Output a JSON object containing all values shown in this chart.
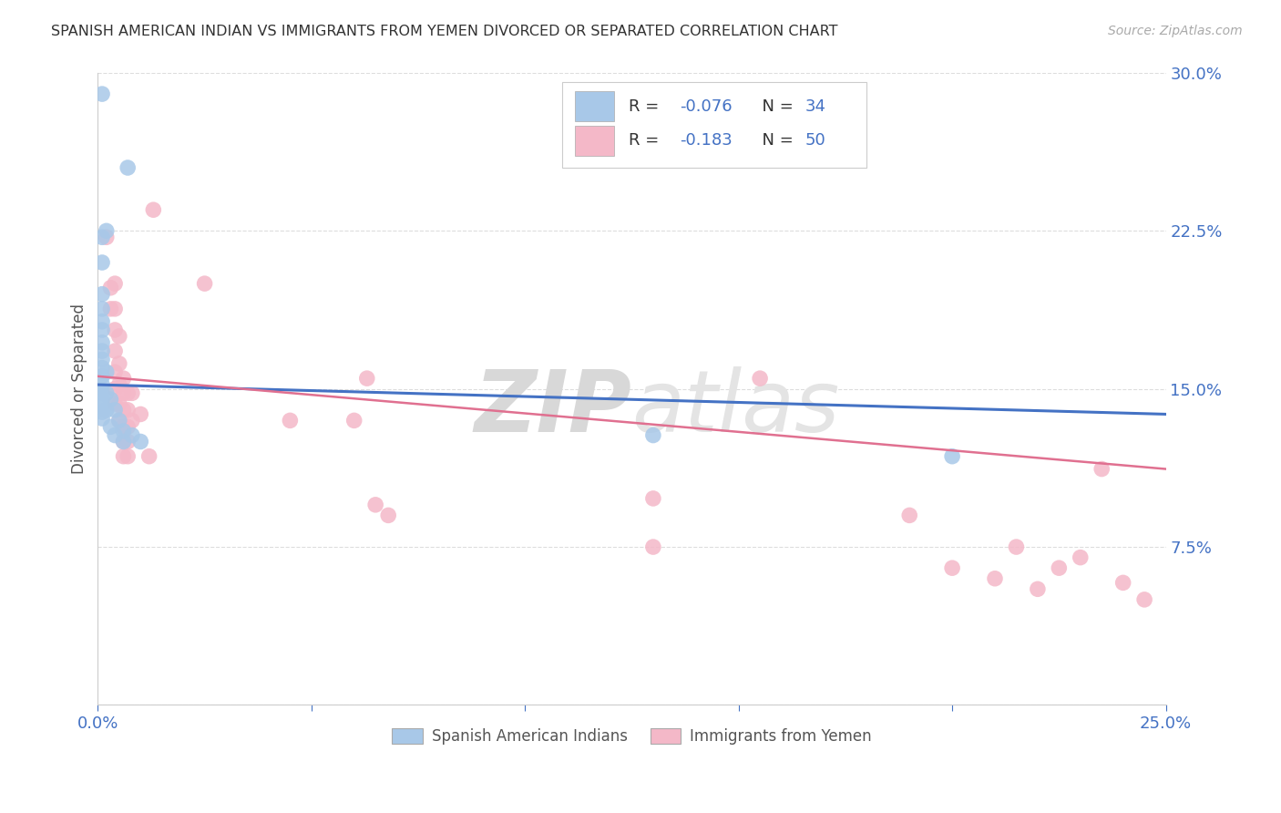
{
  "title": "SPANISH AMERICAN INDIAN VS IMMIGRANTS FROM YEMEN DIVORCED OR SEPARATED CORRELATION CHART",
  "source": "Source: ZipAtlas.com",
  "ylabel": "Divorced or Separated",
  "xlim": [
    0.0,
    0.25
  ],
  "ylim": [
    0.0,
    0.3
  ],
  "xticks": [
    0.0,
    0.05,
    0.1,
    0.15,
    0.2,
    0.25
  ],
  "yticks": [
    0.0,
    0.075,
    0.15,
    0.225,
    0.3
  ],
  "xticklabels": [
    "0.0%",
    "",
    "",
    "",
    "",
    "25.0%"
  ],
  "yticklabels": [
    "",
    "7.5%",
    "15.0%",
    "22.5%",
    "30.0%"
  ],
  "legend_labels": [
    "Spanish American Indians",
    "Immigrants from Yemen"
  ],
  "blue_R": "-0.076",
  "blue_N": "34",
  "pink_R": "-0.183",
  "pink_N": "50",
  "blue_color": "#a8c8e8",
  "pink_color": "#f4b8c8",
  "blue_line_color": "#4472c4",
  "pink_line_color": "#e07090",
  "watermark_zip": "ZIP",
  "watermark_atlas": "atlas",
  "blue_points": [
    [
      0.001,
      0.29
    ],
    [
      0.002,
      0.225
    ],
    [
      0.001,
      0.222
    ],
    [
      0.007,
      0.255
    ],
    [
      0.001,
      0.21
    ],
    [
      0.001,
      0.195
    ],
    [
      0.001,
      0.188
    ],
    [
      0.001,
      0.182
    ],
    [
      0.001,
      0.178
    ],
    [
      0.001,
      0.172
    ],
    [
      0.001,
      0.168
    ],
    [
      0.001,
      0.164
    ],
    [
      0.001,
      0.16
    ],
    [
      0.001,
      0.156
    ],
    [
      0.001,
      0.152
    ],
    [
      0.001,
      0.148
    ],
    [
      0.001,
      0.145
    ],
    [
      0.001,
      0.142
    ],
    [
      0.001,
      0.139
    ],
    [
      0.001,
      0.136
    ],
    [
      0.002,
      0.158
    ],
    [
      0.002,
      0.148
    ],
    [
      0.002,
      0.14
    ],
    [
      0.003,
      0.145
    ],
    [
      0.003,
      0.132
    ],
    [
      0.004,
      0.14
    ],
    [
      0.004,
      0.128
    ],
    [
      0.005,
      0.135
    ],
    [
      0.006,
      0.13
    ],
    [
      0.006,
      0.125
    ],
    [
      0.008,
      0.128
    ],
    [
      0.01,
      0.125
    ],
    [
      0.13,
      0.128
    ],
    [
      0.2,
      0.118
    ]
  ],
  "pink_points": [
    [
      0.002,
      0.222
    ],
    [
      0.003,
      0.198
    ],
    [
      0.003,
      0.188
    ],
    [
      0.004,
      0.2
    ],
    [
      0.004,
      0.188
    ],
    [
      0.004,
      0.178
    ],
    [
      0.004,
      0.168
    ],
    [
      0.004,
      0.158
    ],
    [
      0.004,
      0.15
    ],
    [
      0.004,
      0.143
    ],
    [
      0.005,
      0.175
    ],
    [
      0.005,
      0.162
    ],
    [
      0.005,
      0.152
    ],
    [
      0.005,
      0.143
    ],
    [
      0.005,
      0.135
    ],
    [
      0.006,
      0.155
    ],
    [
      0.006,
      0.148
    ],
    [
      0.006,
      0.14
    ],
    [
      0.006,
      0.132
    ],
    [
      0.006,
      0.125
    ],
    [
      0.006,
      0.118
    ],
    [
      0.007,
      0.148
    ],
    [
      0.007,
      0.14
    ],
    [
      0.007,
      0.132
    ],
    [
      0.007,
      0.125
    ],
    [
      0.007,
      0.118
    ],
    [
      0.008,
      0.148
    ],
    [
      0.008,
      0.135
    ],
    [
      0.01,
      0.138
    ],
    [
      0.012,
      0.118
    ],
    [
      0.013,
      0.235
    ],
    [
      0.025,
      0.2
    ],
    [
      0.045,
      0.135
    ],
    [
      0.06,
      0.135
    ],
    [
      0.063,
      0.155
    ],
    [
      0.065,
      0.095
    ],
    [
      0.068,
      0.09
    ],
    [
      0.13,
      0.098
    ],
    [
      0.13,
      0.075
    ],
    [
      0.155,
      0.155
    ],
    [
      0.19,
      0.09
    ],
    [
      0.2,
      0.065
    ],
    [
      0.21,
      0.06
    ],
    [
      0.215,
      0.075
    ],
    [
      0.22,
      0.055
    ],
    [
      0.225,
      0.065
    ],
    [
      0.23,
      0.07
    ],
    [
      0.235,
      0.112
    ],
    [
      0.24,
      0.058
    ],
    [
      0.245,
      0.05
    ]
  ],
  "blue_line_y0": 0.152,
  "blue_line_y1": 0.138,
  "pink_line_y0": 0.156,
  "pink_line_y1": 0.112
}
